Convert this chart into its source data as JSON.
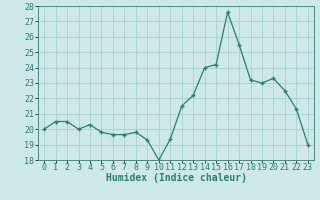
{
  "x": [
    0,
    1,
    2,
    3,
    4,
    5,
    6,
    7,
    8,
    9,
    10,
    11,
    12,
    13,
    14,
    15,
    16,
    17,
    18,
    19,
    20,
    21,
    22,
    23
  ],
  "y": [
    20.0,
    20.5,
    20.5,
    20.0,
    20.3,
    19.8,
    19.65,
    19.65,
    19.8,
    19.3,
    18.0,
    19.35,
    21.5,
    22.2,
    24.0,
    24.2,
    27.6,
    25.5,
    23.2,
    23.0,
    23.3,
    22.5,
    21.3,
    19.0
  ],
  "xlabel": "Humidex (Indice chaleur)",
  "ylim": [
    18,
    28
  ],
  "xlim": [
    -0.5,
    23.5
  ],
  "yticks": [
    18,
    19,
    20,
    21,
    22,
    23,
    24,
    25,
    26,
    27,
    28
  ],
  "xticks": [
    0,
    1,
    2,
    3,
    4,
    5,
    6,
    7,
    8,
    9,
    10,
    11,
    12,
    13,
    14,
    15,
    16,
    17,
    18,
    19,
    20,
    21,
    22,
    23
  ],
  "line_color": "#2e7d6e",
  "marker_color": "#2e7d6e",
  "bg_color": "#cce8e8",
  "grid_color": "#aacece",
  "xlabel_fontsize": 7,
  "tick_fontsize": 6,
  "ylabel_fontsize": 6
}
